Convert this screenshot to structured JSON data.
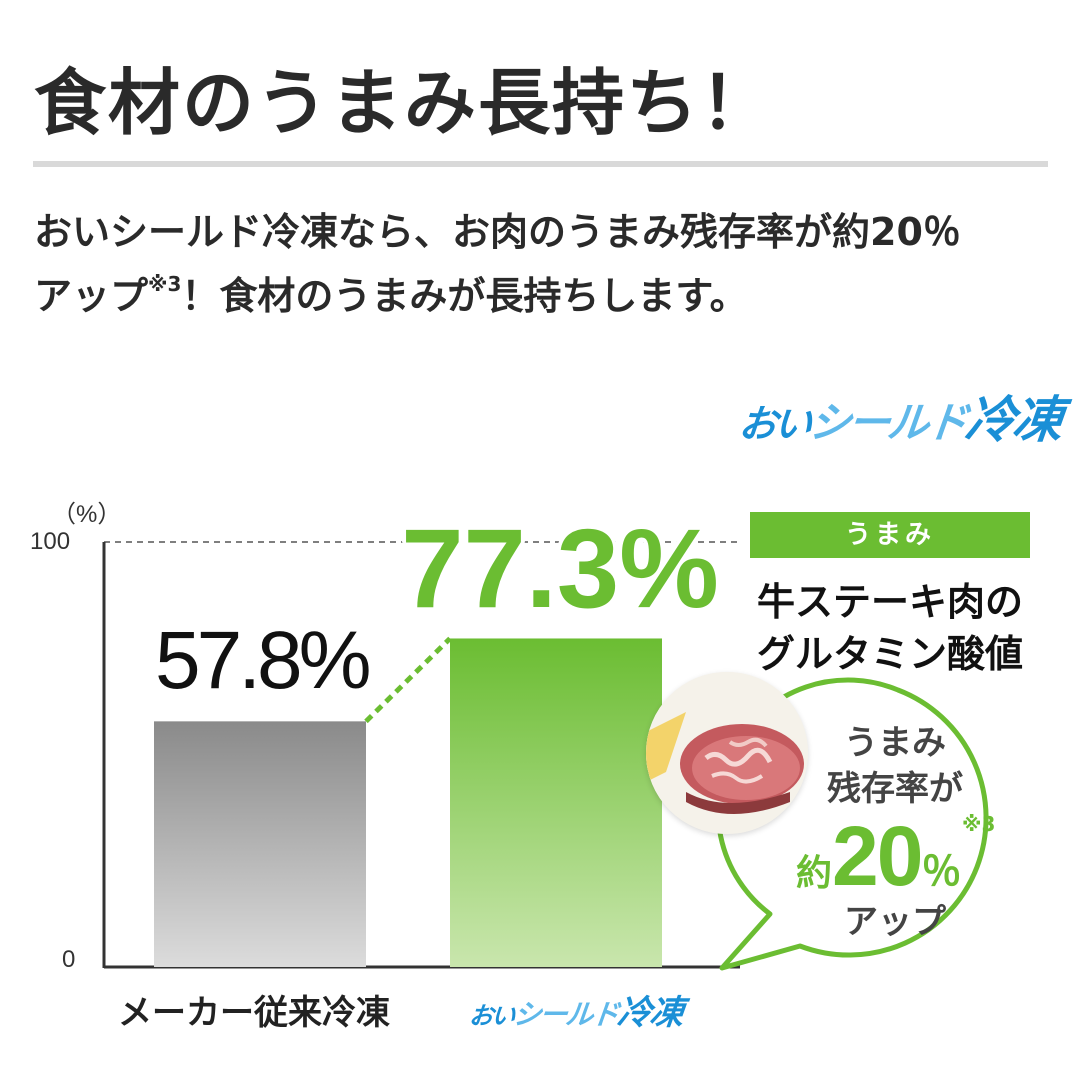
{
  "headline": "食材のうまみ長持ち！",
  "description": {
    "line1": "おいシールド冷凍なら、お肉のうまみ残存率が約20％",
    "line2_pre": "アップ",
    "line2_note": "※3",
    "line2_post": "！食材のうまみが長持ちします。"
  },
  "brand_logo": {
    "part1": "おい",
    "part2": "シールド",
    "part3": "冷凍"
  },
  "badge": "うまみ",
  "metric": {
    "line1": "牛ステーキ肉の",
    "line2": "グルタミン酸値"
  },
  "bubble": {
    "line1": "うまみ",
    "line2": "残存率が",
    "prefix": "約",
    "number": "20",
    "percent": "％",
    "note": "※3",
    "suffix": "アップ"
  },
  "colors": {
    "accent_green": "#6bbd32",
    "light_green": "#c9e6ad",
    "gray_bar_top": "#8a8a8a",
    "gray_bar_bottom": "#dcdcdc",
    "logo_blue": "#1a8fd6"
  },
  "chart_data": {
    "type": "bar",
    "categories": [
      "メーカー従来冷凍",
      "おいシールド冷凍"
    ],
    "values": [
      57.8,
      77.3
    ],
    "value_labels": [
      "57.8%",
      "77.3%"
    ],
    "ylabel": "（%）",
    "ylim": [
      0,
      100
    ],
    "yticks": [
      "0",
      "100"
    ],
    "gridline_at": 100,
    "grid": false,
    "legend": "none"
  }
}
